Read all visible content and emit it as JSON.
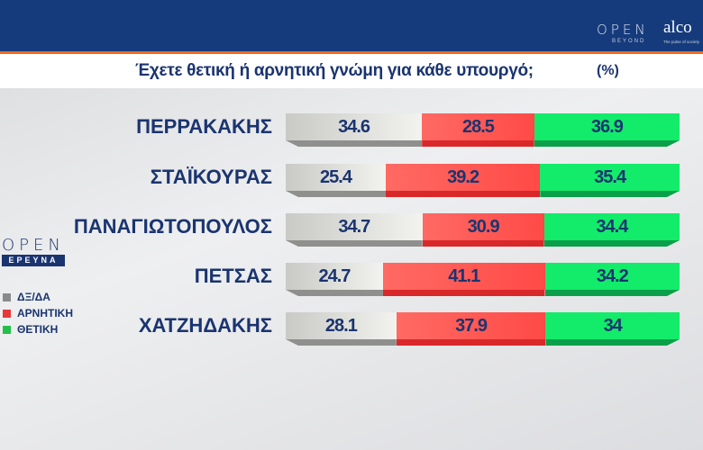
{
  "header": {
    "logo_open": "OPEN",
    "logo_open_sub": "BEYOND",
    "logo_alco": "alco",
    "logo_alco_tag": "The pulse of society"
  },
  "side_logo": {
    "open": "OPEN",
    "ereuna": "ΕΡΕΥΝΑ"
  },
  "chart_data": {
    "type": "bar",
    "orientation": "horizontal",
    "stacked": true,
    "title": "Έχετε θετική ή αρνητική γνώμη για κάθε υπουργό;",
    "unit": "(%)",
    "categories": [
      "ΠΕΡΡΑΚΑΚΗΣ",
      "ΣΤΑΪΚΟΥΡΑΣ",
      "ΠΑΝΑΓΙΩΤΟΠΟΥΛΟΣ",
      "ΠΕΤΣΑΣ",
      "ΧΑΤΖΗΔΑΚΗΣ"
    ],
    "series": [
      {
        "name": "ΔΞ/ΔΑ",
        "color": "#c9cac6",
        "values": [
          34.6,
          25.4,
          34.7,
          24.7,
          28.1
        ]
      },
      {
        "name": "ΑΡΝΗΤΙΚΗ",
        "color": "#ff5a55",
        "values": [
          28.5,
          39.2,
          30.9,
          41.1,
          37.9
        ]
      },
      {
        "name": "ΘΕΤΙΚΗ",
        "color": "#12ec6a",
        "values": [
          36.9,
          35.4,
          34.4,
          34.2,
          34
        ]
      }
    ],
    "legend_position": "left",
    "xlim": [
      0,
      100
    ]
  }
}
